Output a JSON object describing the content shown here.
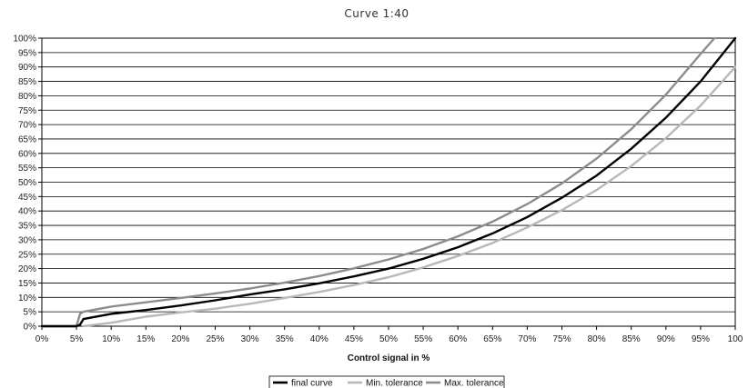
{
  "chart_data": {
    "type": "line",
    "title": "Curve 1:40",
    "xlabel": "Control signal in %",
    "ylabel": "",
    "xlim": [
      0,
      100
    ],
    "ylim": [
      0,
      100
    ],
    "x_ticks": [
      0,
      5,
      10,
      15,
      20,
      25,
      30,
      35,
      40,
      45,
      50,
      55,
      60,
      65,
      70,
      75,
      80,
      85,
      90,
      95,
      100
    ],
    "x_tick_labels": [
      "0%",
      "5%",
      "10%",
      "15%",
      "20%",
      "25%",
      "30%",
      "35%",
      "40%",
      "45%",
      "50%",
      "55%",
      "60%",
      "65%",
      "70%",
      "75%",
      "80%",
      "85%",
      "90%",
      "95%",
      "100"
    ],
    "y_ticks": [
      0,
      5,
      10,
      15,
      20,
      25,
      30,
      35,
      40,
      45,
      50,
      55,
      60,
      65,
      70,
      75,
      80,
      85,
      90,
      95,
      100
    ],
    "y_tick_labels": [
      "0%",
      "5%",
      "10%",
      "15%",
      "20%",
      "25%",
      "30%",
      "35%",
      "40%",
      "45%",
      "50%",
      "55%",
      "60%",
      "65%",
      "70%",
      "75%",
      "80%",
      "85%",
      "90%",
      "95%",
      "100%"
    ],
    "grid": "horizontal",
    "legend_position": "bottom",
    "series": [
      {
        "name": "final curve",
        "color": "#000000",
        "x": [
          0,
          5,
          5.5,
          6,
          10,
          15,
          20,
          25,
          30,
          35,
          40,
          45,
          50,
          55,
          60,
          65,
          70,
          75,
          80,
          85,
          90,
          95,
          100
        ],
        "y": [
          0,
          0,
          0.5,
          2.5,
          4.3,
          5.6,
          7.2,
          9.0,
          11.0,
          12.8,
          14.9,
          17.3,
          20.0,
          23.4,
          27.4,
          32.2,
          37.9,
          44.6,
          52.3,
          61.6,
          72.4,
          85.0,
          100.0
        ]
      },
      {
        "name": "Min. tolerance",
        "color": "#b8b8b8",
        "x": [
          6,
          10,
          15,
          20,
          25,
          30,
          35,
          40,
          45,
          50,
          55,
          60,
          65,
          70,
          75,
          80,
          85,
          90,
          95,
          100
        ],
        "y": [
          0,
          1.2,
          3.3,
          4.8,
          6.1,
          7.8,
          9.8,
          11.9,
          14.3,
          17.0,
          20.4,
          24.4,
          28.9,
          34.3,
          40.3,
          47.3,
          55.6,
          65.3,
          76.6,
          90.0
        ]
      },
      {
        "name": "Max. tolerance",
        "color": "#8c8c8c",
        "x": [
          0,
          5,
          5.5,
          6,
          10,
          15,
          20,
          25,
          30,
          35,
          40,
          45,
          50,
          55,
          60,
          65,
          70,
          75,
          80,
          85,
          90,
          95,
          97
        ],
        "y": [
          0,
          0,
          4.3,
          5.0,
          6.8,
          8.3,
          9.8,
          11.4,
          13.1,
          15.1,
          17.4,
          20.1,
          23.2,
          26.8,
          31.2,
          36.3,
          42.4,
          49.6,
          58.2,
          68.4,
          80.4,
          94.5,
          100.0
        ]
      }
    ]
  }
}
